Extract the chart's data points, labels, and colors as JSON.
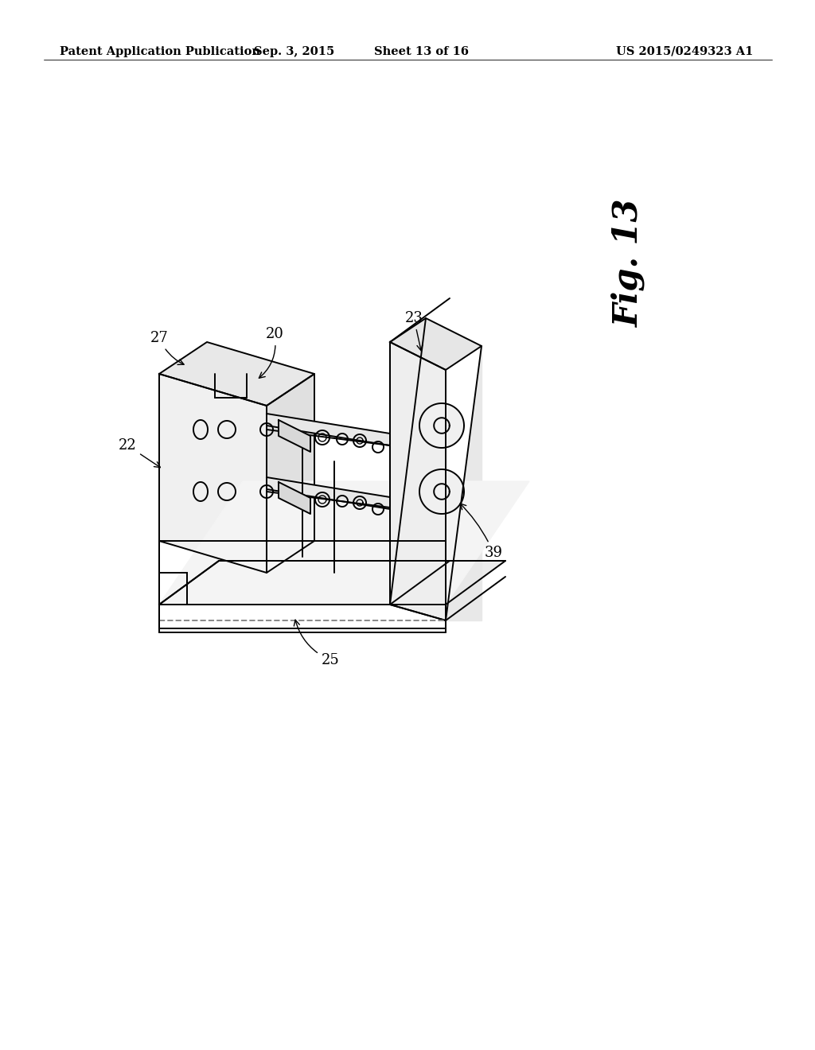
{
  "header": {
    "left": "Patent Application Publication",
    "mid1": "Sep. 3, 2015",
    "mid2": "Sheet 13 of 16",
    "right": "US 2015/0249323 A1"
  },
  "fig_label": "Fig. 13",
  "background_color": "#ffffff",
  "line_color": "#000000",
  "header_fontsize": 10.5,
  "fig_label_fontsize": 30,
  "label_fontsize": 13
}
